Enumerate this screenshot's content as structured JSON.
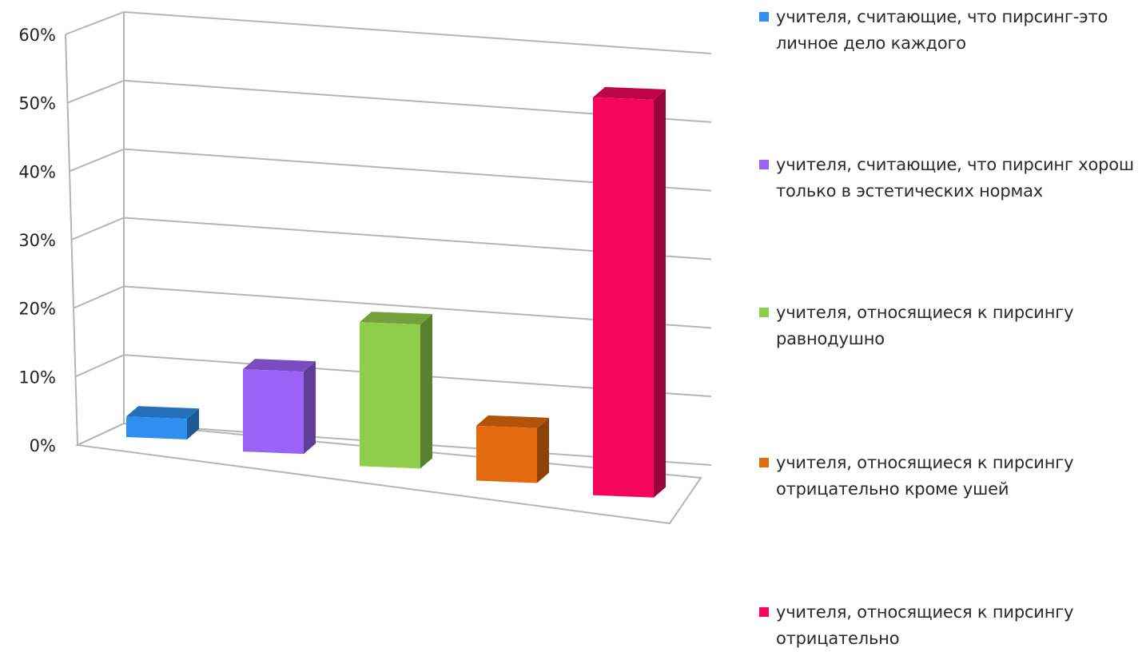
{
  "chart_data": {
    "type": "bar",
    "title": "",
    "xlabel": "",
    "ylabel": "",
    "ylim": [
      0,
      60
    ],
    "y_ticks": [
      "0%",
      "10%",
      "20%",
      "30%",
      "40%",
      "50%",
      "60%"
    ],
    "grid": true,
    "three_d": true,
    "legend_position": "right",
    "series": [
      {
        "name": "учителя, считающие, что пирсинг-это личное дело каждого",
        "value": 3,
        "color": "#2e8ff0"
      },
      {
        "name": "учителя, считающие, что пирсинг хорош только в эстетических нормах",
        "value": 12,
        "color": "#9b63f5"
      },
      {
        "name": "учителя, относящиеся к пирсингу равнодушно",
        "value": 21,
        "color": "#8fce4a"
      },
      {
        "name": "учителя, относящиеся к пирсингу отрицательно кроме ушей",
        "value": 8,
        "color": "#e36a0e"
      },
      {
        "name": "учителя, относящиеся к пирсингу отрицательно",
        "value": 58,
        "color": "#f5065c"
      }
    ]
  }
}
